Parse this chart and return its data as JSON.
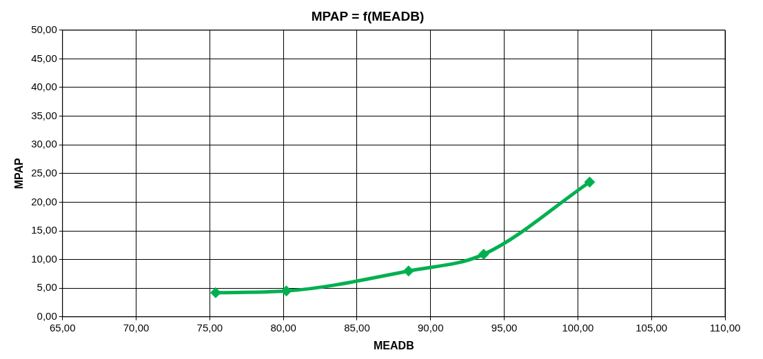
{
  "chart_data": {
    "type": "line",
    "title": "MPAP = f(MEADB)",
    "xlabel": "MEADB",
    "ylabel": "MPAP",
    "x": [
      75.4,
      80.2,
      88.5,
      93.6,
      100.8
    ],
    "series": [
      {
        "color": "#00b050",
        "values": [
          4.2,
          4.5,
          8.0,
          10.9,
          23.5
        ]
      }
    ],
    "xlim": [
      65,
      110
    ],
    "ylim": [
      0,
      50
    ],
    "xticks": [
      {
        "value": 65,
        "label": "65,00"
      },
      {
        "value": 70,
        "label": "70,00"
      },
      {
        "value": 75,
        "label": "75,00"
      },
      {
        "value": 80,
        "label": "80,00"
      },
      {
        "value": 85,
        "label": "85,00"
      },
      {
        "value": 90,
        "label": "90,00"
      },
      {
        "value": 95,
        "label": "95,00"
      },
      {
        "value": 100,
        "label": "100,00"
      },
      {
        "value": 105,
        "label": "105,00"
      },
      {
        "value": 110,
        "label": "110,00"
      }
    ],
    "yticks": [
      {
        "value": 0,
        "label": "0,00"
      },
      {
        "value": 5,
        "label": "5,00"
      },
      {
        "value": 10,
        "label": "10,00"
      },
      {
        "value": 15,
        "label": "15,00"
      },
      {
        "value": 20,
        "label": "20,00"
      },
      {
        "value": 25,
        "label": "25,00"
      },
      {
        "value": 30,
        "label": "30,00"
      },
      {
        "value": 35,
        "label": "35,00"
      },
      {
        "value": 40,
        "label": "40,00"
      },
      {
        "value": 45,
        "label": "45,00"
      },
      {
        "value": 50,
        "label": "50,00"
      }
    ],
    "grid": true,
    "legend": false,
    "marker": "diamond",
    "line_style": "solid"
  }
}
